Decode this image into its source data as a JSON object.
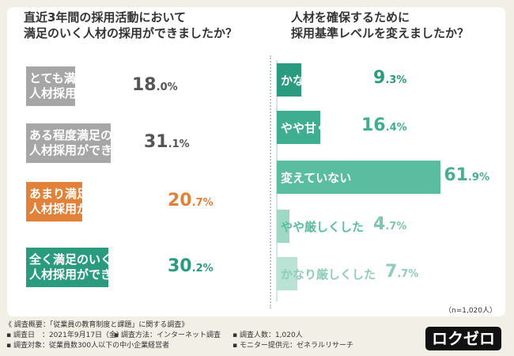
{
  "left": {
    "title_lines": [
      "直近3年間の採用活動において",
      "満足のいく人材の採用ができましたか？"
    ]
  },
  "right": {
    "title_lines": [
      "人材を確保するために",
      "採用基準レベルを変えましたか？"
    ]
  },
  "sample_note": "（n=1,020人）",
  "footer": {
    "heading": "《 調査概要：「従業員の教育制度と課題」に関する調査》",
    "items": [
      "▪ 調査日　：2021年9月17日（金）",
      "▪ 調査方法：インターネット調査",
      "▪ 調査人数：1,020人",
      "▪ 調査対象：従業員数300人以下の中小企業経営者",
      "▪ モニター提供元：ゼネラルリサーチ"
    ]
  },
  "logo_text": "ロクゼロ",
  "chart_data": [
    {
      "type": "bar",
      "orientation": "horizontal",
      "title": "直近3年間の採用活動において満足のいく人材の採用ができましたか？",
      "categories": [
        "とても満足のいく人材採用ができた",
        "ある程度満足のいく人材採用ができた",
        "あまり満足のいく人材採用ができなかった",
        "全く満足のいく人材採用ができなかった"
      ],
      "label_lines": [
        [
          "とても満足のいく",
          "人材採用ができた"
        ],
        [
          "ある程度満足のいく",
          "人材採用ができた"
        ],
        [
          "あまり満足のいく",
          "人材採用ができなかった"
        ],
        [
          "全く満足のいく",
          "人材採用ができなかった"
        ]
      ],
      "values": [
        18.0,
        31.1,
        20.7,
        30.2
      ],
      "unit": "%",
      "colors": [
        "#a6a6a6",
        "#a6a6a6",
        "#e2823a",
        "#2b9b80"
      ],
      "text_colors": [
        "#ffffff",
        "#ffffff",
        "#ffffff",
        "#ffffff"
      ],
      "pct_colors": [
        "#555555",
        "#555555",
        "#e2823a",
        "#2b9b80"
      ]
    },
    {
      "type": "bar",
      "orientation": "horizontal",
      "title": "人材を確保するために採用基準レベルを変えましたか？",
      "categories": [
        "かなり甘くした",
        "やや甘くした",
        "変えていない",
        "やや厳しくした",
        "かなり厳しくした"
      ],
      "values": [
        9.3,
        16.4,
        61.9,
        4.7,
        7.7
      ],
      "unit": "%",
      "colors": [
        "#2b9b80",
        "#3fae90",
        "#5bbd9f",
        "#9fd9c6",
        "#b9e3d5"
      ],
      "label_colors": [
        "#ffffff",
        "#ffffff",
        "#ffffff",
        "#5bbd9f",
        "#8fcdb9"
      ],
      "pct_colors": [
        "#2b9b80",
        "#3fae90",
        "#4aae90",
        "#7cc7ae",
        "#8fcdb9"
      ]
    }
  ]
}
